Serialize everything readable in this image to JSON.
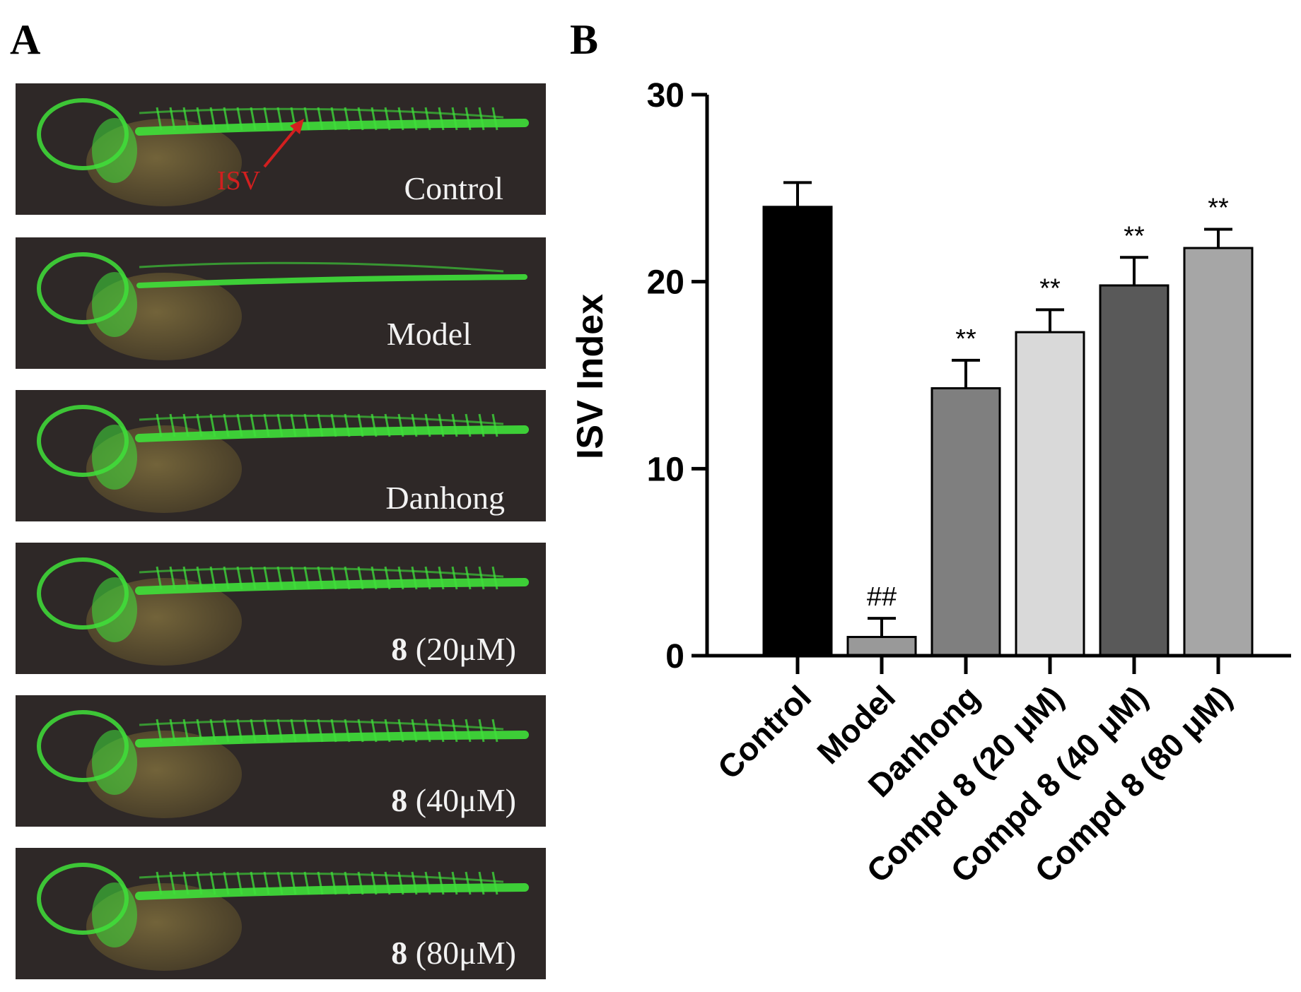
{
  "panels": {
    "a": "A",
    "b": "B"
  },
  "images": {
    "annotation": "ISV",
    "captions": [
      {
        "prefix": "",
        "text": "Control"
      },
      {
        "prefix": "",
        "text": "Model"
      },
      {
        "prefix": "",
        "text": "Danhong"
      },
      {
        "prefix": "8",
        "text": " (20μM)"
      },
      {
        "prefix": "8",
        "text": " (40μM)"
      },
      {
        "prefix": "8",
        "text": " (80μM)"
      }
    ]
  },
  "colors": {
    "photo_bg": "#2e2827",
    "vessel_green": "#3fe03a",
    "yolk": "#6b5b33",
    "arrow_red": "#d21f1f"
  },
  "chart_data": {
    "type": "bar",
    "ylabel": "ISV Index",
    "xlabel": "",
    "ylim": [
      0,
      30
    ],
    "yticks": [
      0,
      10,
      20,
      30
    ],
    "categories": [
      "Control",
      "Model",
      "Danhong",
      "Compd 8 (20 μM)",
      "Compd 8 (40 μM)",
      "Compd 8 (80 μM)"
    ],
    "values": [
      24.0,
      1.0,
      14.3,
      17.3,
      19.8,
      21.8
    ],
    "errors": [
      1.3,
      1.0,
      1.5,
      1.2,
      1.5,
      1.0
    ],
    "significance": [
      "",
      "##",
      "**",
      "**",
      "**",
      "**"
    ],
    "bar_colors": [
      "#000000",
      "#999999",
      "#7f7f7f",
      "#d9d9d9",
      "#595959",
      "#a6a6a6"
    ]
  }
}
